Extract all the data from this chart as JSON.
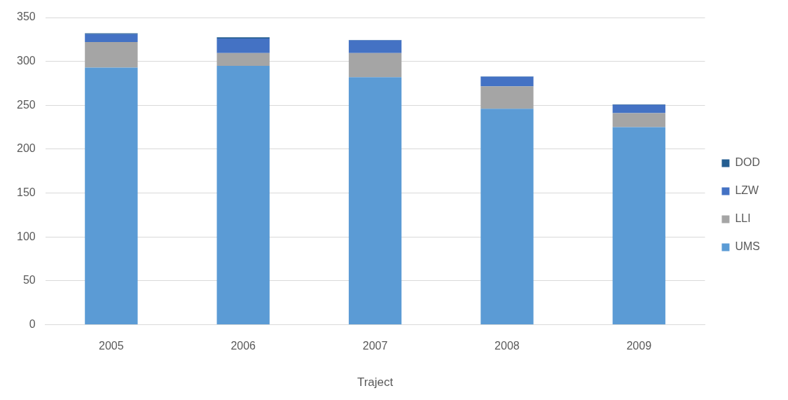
{
  "chart_data": {
    "type": "bar",
    "stacked": true,
    "xlabel": "Traject",
    "categories": [
      "2005",
      "2006",
      "2007",
      "2008",
      "2009"
    ],
    "series": [
      {
        "name": "UMS",
        "color": "#5b9bd5",
        "values": [
          293,
          295,
          282,
          246,
          225
        ]
      },
      {
        "name": "LLI",
        "color": "#a5a5a5",
        "values": [
          29,
          14.5,
          27.5,
          25.5,
          16
        ]
      },
      {
        "name": "LZW",
        "color": "#4472c4",
        "values": [
          9,
          16.5,
          14.5,
          11,
          9.5
        ]
      },
      {
        "name": "DOD",
        "color": "#255e91",
        "values": [
          1,
          1.5,
          0.5,
          0.5,
          0.5
        ]
      }
    ],
    "ylim": [
      0,
      350
    ],
    "yticks": [
      0,
      50,
      100,
      150,
      200,
      250,
      300,
      350
    ],
    "grid": "y",
    "legend": "right"
  }
}
